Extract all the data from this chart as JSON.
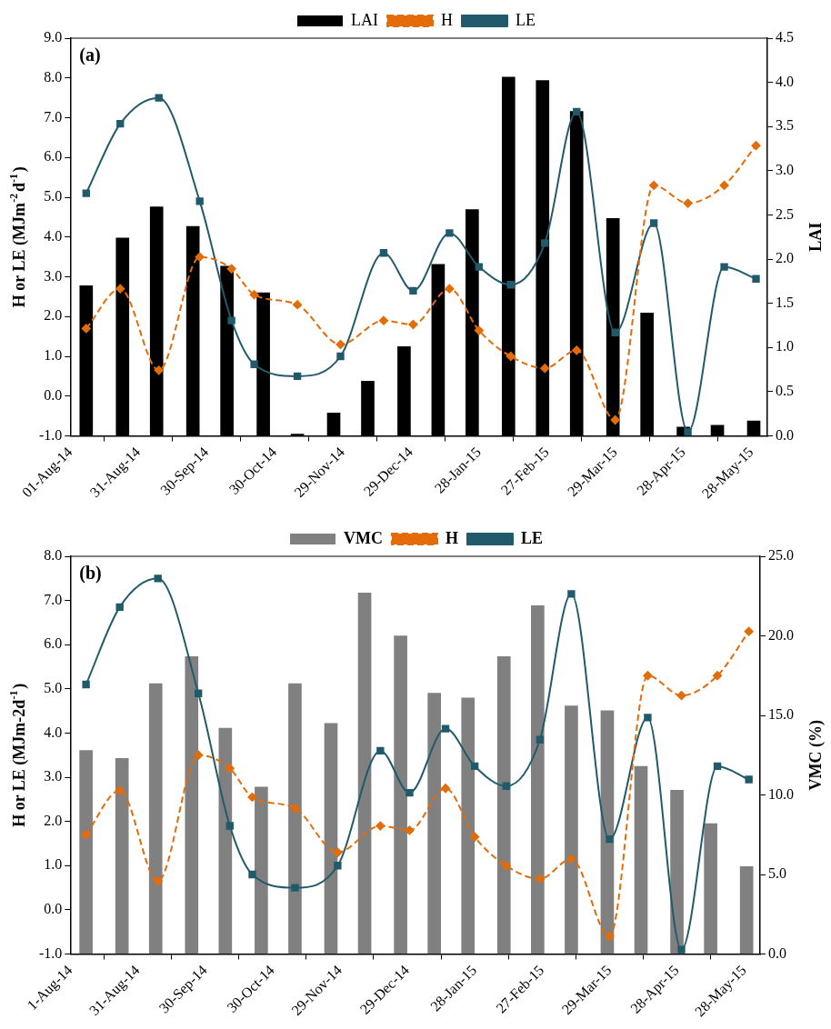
{
  "chart_data": [
    {
      "type": "bar",
      "ylabel": "H or LE (MJm$^{-2}$d$^{-1}$)",
      "y2label": "LAI",
      "annotations": [
        "(a)"
      ],
      "legend": "top",
      "xlim": [
        "2014-08-01",
        "2015-06-04"
      ],
      "xticks": [
        {
          "value": "2014-08-01",
          "label": "01-Aug-14"
        },
        {
          "value": "2014-08-31",
          "label": "31-Aug-14"
        },
        {
          "value": "2014-09-30",
          "label": "30-Sep-14"
        },
        {
          "value": "2014-10-30",
          "label": "30-Oct-14"
        },
        {
          "value": "2014-11-29",
          "label": "29-Nov-14"
        },
        {
          "value": "2014-12-29",
          "label": "29-Dec-14"
        },
        {
          "value": "2015-01-28",
          "label": "28-Jan-15"
        },
        {
          "value": "2015-02-27",
          "label": "27-Feb-15"
        },
        {
          "value": "2015-03-29",
          "label": "29-Mar-15"
        },
        {
          "value": "2015-04-28",
          "label": "28-Apr-15"
        },
        {
          "value": "2015-05-28",
          "label": "28-May-15"
        }
      ],
      "ylim": [
        -1,
        9
      ],
      "yticks": [
        {
          "value": -1,
          "label": "-1.0"
        },
        {
          "value": 0,
          "label": "0.0"
        },
        {
          "value": 1,
          "label": "1.0"
        },
        {
          "value": 2,
          "label": "2.0"
        },
        {
          "value": 3,
          "label": "3.0"
        },
        {
          "value": 4,
          "label": "4.0"
        },
        {
          "value": 5,
          "label": "5.0"
        },
        {
          "value": 6,
          "label": "6.0"
        },
        {
          "value": 7,
          "label": "7.0"
        },
        {
          "value": 8,
          "label": "8.0"
        },
        {
          "value": 9,
          "label": "9.0"
        }
      ],
      "y2lim": [
        0,
        4.5
      ],
      "y2ticks": [
        {
          "value": 0,
          "label": "0.0"
        },
        {
          "value": 0.5,
          "label": "0.5"
        },
        {
          "value": 1,
          "label": "1.0"
        },
        {
          "value": 1.5,
          "label": "1.5"
        },
        {
          "value": 2,
          "label": "2.0"
        },
        {
          "value": 2.5,
          "label": "2.5"
        },
        {
          "value": 3,
          "label": "3.0"
        },
        {
          "value": 3.5,
          "label": "3.5"
        },
        {
          "value": 4,
          "label": "4.0"
        },
        {
          "value": 4.5,
          "label": "4.5"
        }
      ],
      "series": [
        {
          "name": "LAI",
          "axis": "y2",
          "color": "#000000",
          "x": [
            "2014-08-08",
            "2014-08-24",
            "2014-09-08",
            "2014-09-24",
            "2014-10-09",
            "2014-10-25",
            "2014-11-09",
            "2014-11-25",
            "2014-12-10",
            "2014-12-26",
            "2015-01-10",
            "2015-01-25",
            "2015-02-10",
            "2015-02-25",
            "2015-03-12",
            "2015-03-28",
            "2015-04-12",
            "2015-04-28",
            "2015-05-13",
            "2015-05-29"
          ],
          "values": [
            1.7,
            2.24,
            2.59,
            2.37,
            1.92,
            1.62,
            0.02,
            0.26,
            0.62,
            1.01,
            1.94,
            2.56,
            4.06,
            4.02,
            3.67,
            2.46,
            1.39,
            0.1,
            0.12,
            0.17
          ]
        },
        {
          "name": "H",
          "type": "line",
          "color": "#e36c09",
          "marker": "diamond",
          "line_style": "dashed",
          "x": [
            "2014-08-08",
            "2014-08-23",
            "2014-09-09",
            "2014-09-27",
            "2014-10-11",
            "2014-10-21",
            "2014-11-09",
            "2014-11-28",
            "2014-12-17",
            "2014-12-30",
            "2015-01-15",
            "2015-01-28",
            "2015-02-11",
            "2015-02-26",
            "2015-03-12",
            "2015-03-29",
            "2015-04-15",
            "2015-04-30",
            "2015-05-16",
            "2015-05-30"
          ],
          "values": [
            1.7,
            2.7,
            0.65,
            3.5,
            3.2,
            2.55,
            2.3,
            1.3,
            1.9,
            1.8,
            2.7,
            1.65,
            1.0,
            0.7,
            1.15,
            -0.6,
            5.3,
            4.85,
            5.3,
            6.3
          ]
        },
        {
          "name": "LE",
          "type": "line",
          "color": "#215a6a",
          "marker": "square",
          "line_style": "solid",
          "x": [
            "2014-08-08",
            "2014-08-23",
            "2014-09-09",
            "2014-09-27",
            "2014-10-11",
            "2014-10-21",
            "2014-11-09",
            "2014-11-28",
            "2014-12-17",
            "2014-12-30",
            "2015-01-15",
            "2015-01-28",
            "2015-02-11",
            "2015-02-26",
            "2015-03-12",
            "2015-03-29",
            "2015-04-15",
            "2015-04-30",
            "2015-05-16",
            "2015-05-30"
          ],
          "values": [
            5.1,
            6.85,
            7.5,
            4.9,
            1.9,
            0.8,
            0.5,
            1.0,
            3.6,
            2.65,
            4.1,
            3.25,
            2.8,
            3.85,
            7.15,
            1.6,
            4.35,
            -0.9,
            3.25,
            2.95
          ]
        }
      ]
    },
    {
      "type": "bar",
      "ylabel": "H or LE (MJm-2d$^{-1}$)",
      "y2label": "VMC (%)",
      "annotations": [
        "(b)"
      ],
      "legend": "top",
      "xlim": [
        "2014-08-01",
        "2015-06-04"
      ],
      "xticks": [
        {
          "value": "2014-08-01",
          "label": "1-Aug-14"
        },
        {
          "value": "2014-08-31",
          "label": "31-Aug-14"
        },
        {
          "value": "2014-09-30",
          "label": "30-Sep-14"
        },
        {
          "value": "2014-10-30",
          "label": "30-Oct-14"
        },
        {
          "value": "2014-11-29",
          "label": "29-Nov-14"
        },
        {
          "value": "2014-12-29",
          "label": "29-Dec-14"
        },
        {
          "value": "2015-01-28",
          "label": "28-Jan-15"
        },
        {
          "value": "2015-02-27",
          "label": "27-Feb-15"
        },
        {
          "value": "2015-03-29",
          "label": "29-Mar-15"
        },
        {
          "value": "2015-04-28",
          "label": "28-Apr-15"
        },
        {
          "value": "2015-05-28",
          "label": "28-May-15"
        }
      ],
      "ylim": [
        -1,
        8
      ],
      "yticks": [
        {
          "value": -1,
          "label": "-1.0"
        },
        {
          "value": 0,
          "label": "0.0"
        },
        {
          "value": 1,
          "label": "1.0"
        },
        {
          "value": 2,
          "label": "2.0"
        },
        {
          "value": 3,
          "label": "3.0"
        },
        {
          "value": 4,
          "label": "4.0"
        },
        {
          "value": 5,
          "label": "5.0"
        },
        {
          "value": 6,
          "label": "6.0"
        },
        {
          "value": 7,
          "label": "7.0"
        },
        {
          "value": 8,
          "label": "8.0"
        }
      ],
      "y2lim": [
        0,
        25
      ],
      "y2ticks": [
        {
          "value": 0,
          "label": "0.0"
        },
        {
          "value": 5,
          "label": "5.0"
        },
        {
          "value": 10,
          "label": "10.0"
        },
        {
          "value": 15,
          "label": "15.0"
        },
        {
          "value": 20,
          "label": "20.0"
        },
        {
          "value": 25,
          "label": "25.0"
        }
      ],
      "series": [
        {
          "name": "VMC",
          "axis": "y2",
          "color": "#808080",
          "x": [
            "2014-08-08",
            "2014-08-24",
            "2014-09-08",
            "2014-09-24",
            "2014-10-09",
            "2014-10-25",
            "2014-11-09",
            "2014-11-25",
            "2014-12-10",
            "2014-12-26",
            "2015-01-10",
            "2015-01-25",
            "2015-02-10",
            "2015-02-25",
            "2015-03-12",
            "2015-03-28",
            "2015-04-12",
            "2015-04-28",
            "2015-05-13",
            "2015-05-29"
          ],
          "values": [
            12.8,
            12.3,
            17.0,
            18.7,
            14.2,
            10.5,
            17.0,
            14.5,
            22.7,
            20.0,
            16.4,
            16.1,
            18.7,
            21.9,
            15.6,
            15.3,
            11.8,
            10.3,
            8.2,
            5.5
          ]
        },
        {
          "name": "H",
          "type": "line",
          "color": "#e36c09",
          "marker": "diamond",
          "line_style": "dashed",
          "x": [
            "2014-08-08",
            "2014-08-23",
            "2014-09-09",
            "2014-09-27",
            "2014-10-11",
            "2014-10-21",
            "2014-11-09",
            "2014-11-28",
            "2014-12-17",
            "2014-12-30",
            "2015-01-15",
            "2015-01-28",
            "2015-02-11",
            "2015-02-26",
            "2015-03-12",
            "2015-03-29",
            "2015-04-15",
            "2015-04-30",
            "2015-05-16",
            "2015-05-30"
          ],
          "values": [
            1.7,
            2.7,
            0.65,
            3.5,
            3.2,
            2.55,
            2.3,
            1.3,
            1.9,
            1.8,
            2.75,
            1.65,
            1.0,
            0.7,
            1.15,
            -0.6,
            5.3,
            4.85,
            5.3,
            6.3
          ]
        },
        {
          "name": "LE",
          "type": "line",
          "color": "#215a6a",
          "marker": "square",
          "line_style": "solid",
          "x": [
            "2014-08-08",
            "2014-08-23",
            "2014-09-09",
            "2014-09-27",
            "2014-10-11",
            "2014-10-21",
            "2014-11-09",
            "2014-11-28",
            "2014-12-17",
            "2014-12-30",
            "2015-01-15",
            "2015-01-28",
            "2015-02-11",
            "2015-02-26",
            "2015-03-12",
            "2015-03-29",
            "2015-04-15",
            "2015-04-30",
            "2015-05-16",
            "2015-05-30"
          ],
          "values": [
            5.1,
            6.85,
            7.5,
            4.9,
            1.9,
            0.8,
            0.5,
            1.0,
            3.6,
            2.65,
            4.1,
            3.25,
            2.8,
            3.85,
            7.15,
            1.6,
            4.35,
            -0.9,
            3.25,
            2.95
          ]
        }
      ]
    }
  ]
}
